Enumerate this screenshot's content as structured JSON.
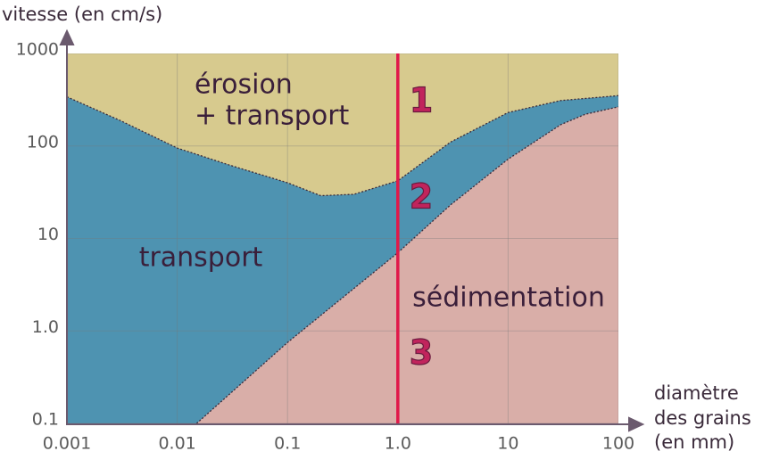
{
  "chart_data": {
    "type": "hjulstrom",
    "ylabel": "vitesse (en cm/s)",
    "xlabel": [
      "diamètre",
      "des grains",
      "(en mm)"
    ],
    "log_x": true,
    "log_y": true,
    "grid": true,
    "xlim": [
      0.001,
      100
    ],
    "xticks": [
      0.001,
      0.01,
      0.1,
      {
        "value": 1,
        "label": "1.0"
      },
      10,
      100
    ],
    "ylim": [
      0.1,
      1000
    ],
    "yticks": [
      0.1,
      {
        "value": 1,
        "label": "1.0"
      },
      10,
      100,
      1000
    ],
    "area_colors": [
      "#d7ca8e",
      "#4e93b1",
      "#d9aea8"
    ],
    "series": [
      {
        "color": "#3a2a3a",
        "x": [
          0.001,
          0.003,
          0.01,
          0.03,
          0.1,
          0.2,
          0.4,
          1,
          3,
          10,
          30,
          100
        ],
        "values": [
          340,
          190,
          95,
          62,
          40,
          29,
          30,
          42,
          110,
          230,
          310,
          350
        ]
      },
      {
        "color": "#3a2a3a",
        "x": [
          0.015,
          0.1,
          1,
          3,
          10,
          30,
          50,
          100
        ],
        "values": [
          0.1,
          0.75,
          7,
          23,
          72,
          170,
          220,
          265
        ]
      }
    ],
    "marker_x": 1,
    "marker_color": "#e0194a",
    "annotations": [
      "érosion",
      "+ transport",
      "1",
      "2",
      "transport",
      "sédimentation",
      "3"
    ]
  }
}
